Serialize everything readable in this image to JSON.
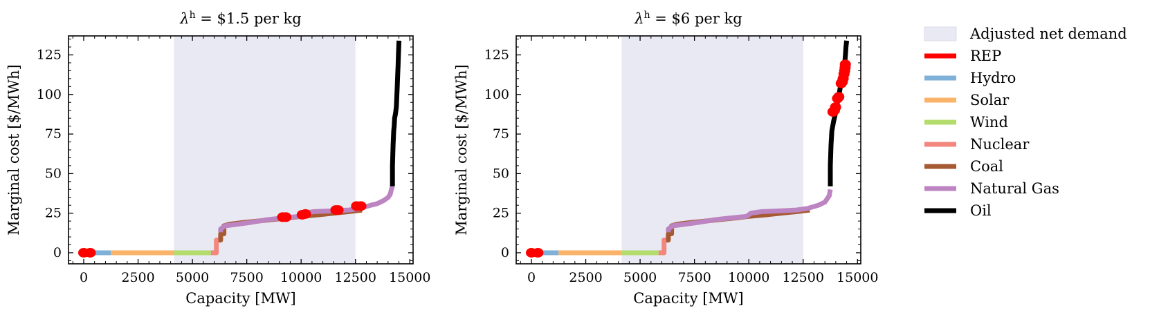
{
  "legend": {
    "items": [
      {
        "key": "adjusted",
        "label": "Adjusted net demand",
        "color": "#e9e9f3",
        "kind": "patch"
      },
      {
        "key": "rep",
        "label": "REP",
        "color": "#ff0000",
        "kind": "line"
      },
      {
        "key": "hydro",
        "label": "Hydro",
        "color": "#7fb0d8",
        "kind": "line"
      },
      {
        "key": "solar",
        "label": "Solar",
        "color": "#fbb36a",
        "kind": "line"
      },
      {
        "key": "wind",
        "label": "Wind",
        "color": "#b3dc6c",
        "kind": "line"
      },
      {
        "key": "nuclear",
        "label": "Nuclear",
        "color": "#f3877d",
        "kind": "line"
      },
      {
        "key": "coal",
        "label": "Coal",
        "color": "#a65a33",
        "kind": "line"
      },
      {
        "key": "gas",
        "label": "Natural Gas",
        "color": "#bd84c2",
        "kind": "line"
      },
      {
        "key": "oil",
        "label": "Oil",
        "color": "#000000",
        "kind": "line"
      }
    ]
  },
  "chart_data": [
    {
      "type": "line",
      "title_symbol": "λ",
      "title_superscript": "h",
      "title_rest": " = $1.5 per kg",
      "xlabel": "Capacity [MW]",
      "ylabel": "Marginal cost [$/MWh]",
      "xlim": [
        -700,
        15150
      ],
      "ylim": [
        -7,
        137
      ],
      "xticks": [
        0,
        2500,
        5000,
        7500,
        10000,
        12500,
        15000
      ],
      "xtick_labels": [
        "0",
        "2500",
        "5000",
        "7500",
        "10000",
        "12500",
        "15000"
      ],
      "yticks": [
        0,
        25,
        50,
        75,
        100,
        125
      ],
      "ytick_labels": [
        "0",
        "25",
        "50",
        "75",
        "100",
        "125"
      ],
      "adjusted_net_demand_range": [
        4150,
        12500
      ],
      "series": [
        {
          "name": "Hydro",
          "key": "hydro",
          "x": [
            0,
            1250
          ],
          "y": [
            0,
            0
          ]
        },
        {
          "name": "Solar",
          "key": "solar",
          "x": [
            1250,
            4150
          ],
          "y": [
            0,
            0
          ]
        },
        {
          "name": "Wind",
          "key": "wind",
          "x": [
            4150,
            5850
          ],
          "y": [
            0,
            0
          ]
        },
        {
          "name": "Nuclear",
          "key": "nuclear",
          "x": [
            5850,
            6100,
            6100,
            6200
          ],
          "y": [
            0,
            0,
            8,
            8
          ]
        },
        {
          "name": "Coal",
          "key": "coal",
          "x": [
            6200,
            6300,
            6300,
            6450,
            6450,
            6700,
            7300,
            8000,
            8700,
            9400,
            10000,
            10800,
            11500,
            12200,
            12800
          ],
          "y": [
            8,
            8,
            12,
            12,
            17,
            18,
            19,
            20,
            21,
            22,
            23,
            24,
            25,
            26,
            27
          ]
        },
        {
          "name": "Natural Gas",
          "key": "gas",
          "x": [
            6300,
            6300,
            6500,
            7600,
            8500,
            9200,
            9900,
            10100,
            10600,
            11500,
            12200,
            12700,
            13200,
            13500,
            13800,
            14000,
            14100,
            14150,
            14200
          ],
          "y": [
            13,
            15,
            17,
            19,
            21,
            22,
            23,
            25,
            26,
            26.5,
            27,
            28,
            30,
            31,
            33,
            35,
            37,
            40,
            42
          ]
        },
        {
          "name": "Oil",
          "key": "oil",
          "x": [
            14200,
            14200,
            14230,
            14260,
            14280,
            14300,
            14340,
            14380,
            14400,
            14420,
            14440,
            14460,
            14480,
            14500
          ],
          "y": [
            42,
            55,
            68,
            77,
            80,
            85,
            88,
            92,
            98,
            105,
            112,
            118,
            126,
            134
          ]
        },
        {
          "name": "REP",
          "key": "rep",
          "x": [
            0,
            300
          ],
          "y": [
            0,
            0
          ]
        },
        {
          "name": "REP",
          "key": "rep",
          "x": [
            9150,
            9300
          ],
          "y": [
            22.5,
            22.5
          ]
        },
        {
          "name": "REP",
          "key": "rep",
          "x": [
            10050,
            10200
          ],
          "y": [
            24,
            24.5
          ]
        },
        {
          "name": "REP",
          "key": "rep",
          "x": [
            11600,
            11700
          ],
          "y": [
            27,
            27
          ]
        },
        {
          "name": "REP",
          "key": "rep",
          "x": [
            12550,
            12750
          ],
          "y": [
            29.5,
            29.5
          ]
        }
      ]
    },
    {
      "type": "line",
      "title_symbol": "λ",
      "title_superscript": "h",
      "title_rest": " = $6 per kg",
      "xlabel": "Capacity [MW]",
      "ylabel": "Marginal cost [$/MWh]",
      "xlim": [
        -700,
        15150
      ],
      "ylim": [
        -7,
        137
      ],
      "xticks": [
        0,
        2500,
        5000,
        7500,
        10000,
        12500,
        15000
      ],
      "xtick_labels": [
        "0",
        "2500",
        "5000",
        "7500",
        "10000",
        "12500",
        "15000"
      ],
      "yticks": [
        0,
        25,
        50,
        75,
        100,
        125
      ],
      "ytick_labels": [
        "0",
        "25",
        "50",
        "75",
        "100",
        "125"
      ],
      "adjusted_net_demand_range": [
        4150,
        12500
      ],
      "series": [
        {
          "name": "Hydro",
          "key": "hydro",
          "x": [
            0,
            1250
          ],
          "y": [
            0,
            0
          ]
        },
        {
          "name": "Solar",
          "key": "solar",
          "x": [
            1250,
            4150
          ],
          "y": [
            0,
            0
          ]
        },
        {
          "name": "Wind",
          "key": "wind",
          "x": [
            4150,
            5850
          ],
          "y": [
            0,
            0
          ]
        },
        {
          "name": "Nuclear",
          "key": "nuclear",
          "x": [
            5850,
            6100,
            6100,
            6200
          ],
          "y": [
            0,
            0,
            8,
            8
          ]
        },
        {
          "name": "Coal",
          "key": "coal",
          "x": [
            6200,
            6300,
            6300,
            6450,
            6450,
            6700,
            7300,
            8000,
            8700,
            9400,
            10000,
            10800,
            11500,
            12200,
            12800
          ],
          "y": [
            8,
            8,
            12,
            12,
            17,
            18,
            19,
            20,
            21,
            22,
            23,
            24,
            25,
            26,
            27
          ]
        },
        {
          "name": "Natural Gas",
          "key": "gas",
          "x": [
            6300,
            6300,
            6500,
            7600,
            8500,
            9200,
            9900,
            10100,
            10600,
            11500,
            12200,
            12700,
            13200,
            13500,
            13700,
            13750
          ],
          "y": [
            13,
            15,
            17,
            19,
            21,
            22,
            23,
            25,
            26,
            26.5,
            27,
            28,
            30,
            32,
            36,
            40
          ]
        },
        {
          "name": "Oil",
          "key": "oil",
          "x": [
            13750,
            13750,
            13780,
            13820,
            13860,
            13900,
            13950,
            14000,
            14050,
            14100,
            14150,
            14200,
            14250,
            14300,
            14350,
            14400,
            14420,
            14450,
            14470,
            14500
          ],
          "y": [
            42,
            55,
            68,
            77,
            80,
            83,
            86,
            89,
            93,
            97,
            100,
            104,
            107,
            110,
            113,
            117,
            121,
            126,
            130,
            134
          ]
        },
        {
          "name": "REP",
          "key": "rep",
          "x": [
            0,
            300
          ],
          "y": [
            0,
            0
          ]
        },
        {
          "name": "REP",
          "key": "rep",
          "x": [
            13870,
            13940,
            13990
          ],
          "y": [
            89,
            90,
            92
          ]
        },
        {
          "name": "REP",
          "key": "rep",
          "x": [
            14080,
            14140
          ],
          "y": [
            97.5,
            98.5
          ]
        },
        {
          "name": "REP",
          "key": "rep",
          "x": [
            14250,
            14300,
            14340,
            14380,
            14410,
            14430,
            14440
          ],
          "y": [
            107,
            108,
            110,
            113,
            115,
            117,
            119
          ]
        }
      ]
    }
  ]
}
